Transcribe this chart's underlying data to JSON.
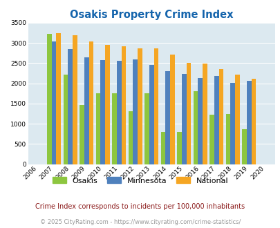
{
  "title": "Osakis Property Crime Index",
  "title_color": "#1464ac",
  "years": [
    2006,
    2007,
    2008,
    2009,
    2010,
    2011,
    2012,
    2013,
    2014,
    2015,
    2016,
    2017,
    2018,
    2019,
    2020
  ],
  "osakis": [
    0,
    3230,
    2220,
    1460,
    1760,
    1760,
    1310,
    1750,
    790,
    790,
    1800,
    1220,
    1250,
    870,
    0
  ],
  "minnesota": [
    0,
    3040,
    2850,
    2640,
    2570,
    2560,
    2590,
    2460,
    2310,
    2230,
    2130,
    2180,
    2010,
    2060,
    0
  ],
  "national": [
    0,
    3250,
    3200,
    3040,
    2960,
    2910,
    2870,
    2860,
    2720,
    2510,
    2490,
    2360,
    2210,
    2110,
    0
  ],
  "osakis_color": "#8dc63f",
  "minnesota_color": "#4f81bd",
  "national_color": "#f5a623",
  "bg_color": "#dce9f0",
  "grid_color": "#ffffff",
  "ylim": [
    0,
    3500
  ],
  "yticks": [
    0,
    500,
    1000,
    1500,
    2000,
    2500,
    3000,
    3500
  ],
  "legend_labels": [
    "Osakis",
    "Minnesota",
    "National"
  ],
  "footnote1": "Crime Index corresponds to incidents per 100,000 inhabitants",
  "footnote2": "© 2025 CityRating.com - https://www.cityrating.com/crime-statistics/",
  "footnote1_color": "#8b1a1a",
  "footnote2_color": "#999999",
  "bar_width": 0.28
}
